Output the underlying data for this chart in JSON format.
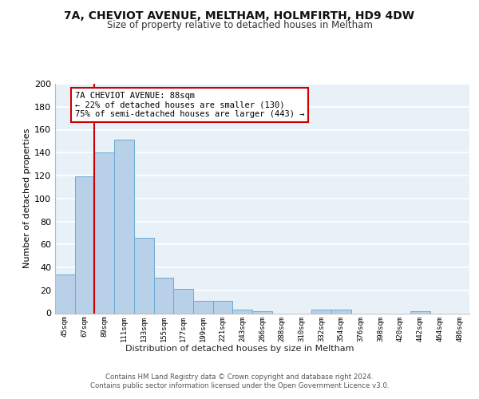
{
  "title1": "7A, CHEVIOT AVENUE, MELTHAM, HOLMFIRTH, HD9 4DW",
  "title2": "Size of property relative to detached houses in Meltham",
  "xlabel": "Distribution of detached houses by size in Meltham",
  "ylabel": "Number of detached properties",
  "categories": [
    "45sqm",
    "67sqm",
    "89sqm",
    "111sqm",
    "133sqm",
    "155sqm",
    "177sqm",
    "199sqm",
    "221sqm",
    "243sqm",
    "266sqm",
    "288sqm",
    "310sqm",
    "332sqm",
    "354sqm",
    "376sqm",
    "398sqm",
    "420sqm",
    "442sqm",
    "464sqm",
    "486sqm"
  ],
  "values": [
    34,
    119,
    140,
    151,
    66,
    31,
    21,
    11,
    11,
    3,
    2,
    0,
    0,
    3,
    3,
    0,
    0,
    0,
    2,
    0,
    0
  ],
  "bar_color": "#b8d0e8",
  "bar_edge_color": "#6aaad4",
  "background_color": "#e8f0f8",
  "grid_color": "#ffffff",
  "vline_color": "#cc0000",
  "annotation_text": "7A CHEVIOT AVENUE: 88sqm\n← 22% of detached houses are smaller (130)\n75% of semi-detached houses are larger (443) →",
  "annotation_box_color": "#ffffff",
  "annotation_border_color": "#cc0000",
  "footer_text": "Contains HM Land Registry data © Crown copyright and database right 2024.\nContains public sector information licensed under the Open Government Licence v3.0.",
  "ylim": [
    0,
    200
  ],
  "yticks": [
    0,
    20,
    40,
    60,
    80,
    100,
    120,
    140,
    160,
    180,
    200
  ]
}
